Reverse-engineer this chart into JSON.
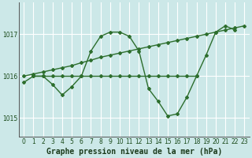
{
  "title": "Graphe pression niveau de la mer (hPa)",
  "bg_color": "#cce8e8",
  "grid_color": "#b0d8d8",
  "line_color": "#2d6e2d",
  "xlim": [
    -0.5,
    23.5
  ],
  "ylim": [
    1014.55,
    1017.75
  ],
  "yticks": [
    1015,
    1016,
    1017
  ],
  "xticks": [
    0,
    1,
    2,
    3,
    4,
    5,
    6,
    7,
    8,
    9,
    10,
    11,
    12,
    13,
    14,
    15,
    16,
    17,
    18,
    19,
    20,
    21,
    22,
    23
  ],
  "series": [
    {
      "x": [
        0,
        1,
        2,
        3,
        4,
        5,
        6,
        7,
        8,
        9,
        10,
        11,
        12,
        13,
        14,
        15,
        16,
        17,
        18,
        19,
        20,
        21,
        22
      ],
      "y": [
        1015.85,
        1016.0,
        1016.0,
        1015.8,
        1015.55,
        1015.75,
        1016.0,
        1016.6,
        1016.95,
        1017.05,
        1017.05,
        1016.95,
        1016.6,
        1015.7,
        1015.4,
        1015.05,
        1015.1,
        1015.5,
        1016.0,
        1016.5,
        1017.05,
        1017.2,
        1017.1
      ]
    },
    {
      "x": [
        1,
        2,
        3,
        4,
        5,
        6,
        7,
        8,
        9,
        10,
        11,
        12,
        13,
        14,
        15,
        16,
        17,
        18
      ],
      "y": [
        1016.0,
        1016.0,
        1016.0,
        1016.0,
        1016.0,
        1016.0,
        1016.0,
        1016.0,
        1016.0,
        1016.0,
        1016.0,
        1016.0,
        1016.0,
        1016.0,
        1016.0,
        1016.0,
        1016.0,
        1016.0
      ]
    },
    {
      "x": [
        0,
        1,
        2,
        3,
        4,
        5,
        6,
        7,
        8,
        9,
        10,
        11,
        12,
        13,
        14,
        15,
        16,
        17,
        18,
        19,
        20,
        21,
        22,
        23
      ],
      "y": [
        1016.0,
        1016.05,
        1016.1,
        1016.15,
        1016.2,
        1016.25,
        1016.32,
        1016.38,
        1016.45,
        1016.5,
        1016.55,
        1016.6,
        1016.65,
        1016.7,
        1016.75,
        1016.8,
        1016.85,
        1016.9,
        1016.95,
        1017.0,
        1017.05,
        1017.1,
        1017.15,
        1017.2
      ]
    }
  ],
  "marker": "D",
  "markersize": 2.0,
  "linewidth": 1.0,
  "title_fontsize": 7,
  "tick_fontsize": 5.5
}
